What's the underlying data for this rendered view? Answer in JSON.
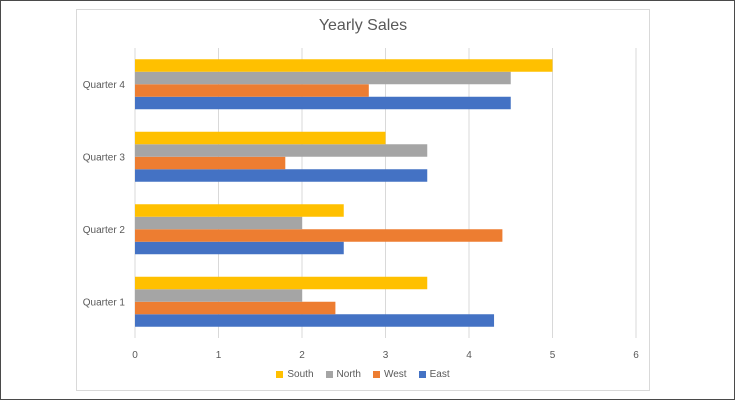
{
  "chart_data": {
    "type": "bar",
    "orientation": "horizontal",
    "title": "Yearly Sales",
    "xlabel": "",
    "ylabel": "",
    "categories": [
      "Quarter 1",
      "Quarter 2",
      "Quarter 3",
      "Quarter 4"
    ],
    "series": [
      {
        "name": "East",
        "color": "#4472C4",
        "values": [
          4.3,
          2.5,
          3.5,
          4.5
        ]
      },
      {
        "name": "West",
        "color": "#ED7D31",
        "values": [
          2.4,
          4.4,
          1.8,
          2.8
        ]
      },
      {
        "name": "North",
        "color": "#A5A5A5",
        "values": [
          2.0,
          2.0,
          3.5,
          4.5
        ]
      },
      {
        "name": "South",
        "color": "#FFC000",
        "values": [
          3.5,
          2.5,
          3.0,
          5.0
        ]
      }
    ],
    "xlim": [
      0,
      6
    ],
    "x_ticks": [
      "0",
      "1",
      "2",
      "3",
      "4",
      "5",
      "6"
    ],
    "grid": true,
    "legend_position": "bottom",
    "legend_order": [
      "South",
      "North",
      "West",
      "East"
    ]
  }
}
